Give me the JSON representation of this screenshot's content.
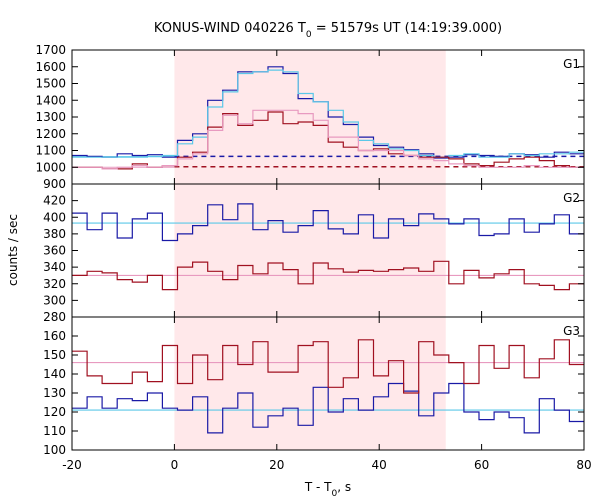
{
  "chart_data": {
    "type": "line",
    "title": "KONUS-WIND 040226 T",
    "title_sub": "0",
    "title_rest": " = 51579s UT (14:19:39.000)",
    "xlabel": "T - T",
    "xlabel_sub": "0",
    "xlabel_rest": ", s",
    "ylabel": "counts / sec",
    "xlim": [
      -20,
      80
    ],
    "x_ticks": [
      -20,
      0,
      20,
      40,
      60,
      80
    ],
    "highlight_interval": [
      0,
      53
    ],
    "highlight_color": "#ffe8ea",
    "bin_edges": [
      -20,
      -17.056,
      -14.112,
      -11.168,
      -8.224,
      -5.28,
      -2.336,
      0.608,
      3.552,
      6.496,
      9.44,
      12.384,
      15.328,
      18.272,
      21.216,
      24.16,
      27.104,
      30.048,
      32.992,
      35.936,
      38.88,
      41.824,
      44.768,
      47.712,
      50.656,
      53.6,
      56.544,
      59.488,
      62.432,
      65.376,
      68.32,
      71.264,
      74.208,
      77.152,
      80
    ],
    "panels": [
      {
        "label": "G1",
        "ylim": [
          900,
          1700
        ],
        "y_ticks": [
          900,
          1000,
          1100,
          1200,
          1300,
          1400,
          1500,
          1600,
          1700
        ],
        "series": [
          {
            "color": "#1a1aa6",
            "values": [
              1070,
              1065,
              1060,
              1080,
              1070,
              1075,
              1060,
              1160,
              1200,
              1400,
              1460,
              1570,
              1570,
              1600,
              1560,
              1410,
              1390,
              1300,
              1255,
              1180,
              1130,
              1120,
              1105,
              1080,
              1055,
              1060,
              1075,
              1070,
              1065,
              1080,
              1075,
              1060,
              1090,
              1080
            ]
          },
          {
            "color": "#5bc8e8",
            "values": [
              1060,
              1060,
              1060,
              1060,
              1060,
              1065,
              1070,
              1140,
              1180,
              1360,
              1450,
              1560,
              1570,
              1580,
              1570,
              1440,
              1390,
              1340,
              1270,
              1160,
              1140,
              1110,
              1100,
              1070,
              1060,
              1070,
              1080,
              1060,
              1060,
              1080,
              1070,
              1080,
              1080,
              1090
            ]
          },
          {
            "color": "#a01020",
            "values": [
              1000,
              1000,
              990,
              990,
              1020,
              1000,
              1010,
              1060,
              1090,
              1240,
              1320,
              1250,
              1280,
              1330,
              1260,
              1270,
              1250,
              1150,
              1120,
              1100,
              1110,
              1080,
              1070,
              1060,
              1060,
              1050,
              1020,
              1010,
              1030,
              1050,
              1060,
              1040,
              1010,
              1000
            ]
          },
          {
            "color": "#e89ac0",
            "values": [
              1000,
              1000,
              990,
              1000,
              1010,
              1000,
              1010,
              1050,
              1080,
              1220,
              1310,
              1260,
              1340,
              1340,
              1340,
              1320,
              1280,
              1180,
              1180,
              1100,
              1100,
              1100,
              1070,
              1050,
              1040,
              1020,
              1010,
              1000,
              1000,
              1000,
              1010,
              1000,
              1000,
              1000
            ]
          }
        ],
        "background_levels": [
          {
            "color": "#1a1aa6",
            "value": 1065,
            "dashed": true,
            "x_range": [
              0,
              80
            ]
          },
          {
            "color": "#5bc8e8",
            "value": 1063,
            "dashed": false,
            "x_range": [
              -20,
              0
            ]
          },
          {
            "color": "#a01020",
            "value": 1003,
            "dashed": true,
            "x_range": [
              0,
              80
            ]
          },
          {
            "color": "#e89ac0",
            "value": 1000,
            "dashed": false,
            "x_range": [
              -20,
              0
            ]
          }
        ]
      },
      {
        "label": "G2",
        "ylim": [
          280,
          440
        ],
        "y_ticks": [
          280,
          300,
          320,
          340,
          360,
          380,
          400,
          420
        ],
        "series": [
          {
            "color": "#1a1aa6",
            "values": [
              405,
              385,
              405,
              375,
              398,
              405,
              372,
              380,
              390,
              415,
              397,
              416,
              385,
              396,
              382,
              390,
              408,
              386,
              380,
              403,
              375,
              398,
              390,
              404,
              398,
              392,
              398,
              378,
              380,
              398,
              382,
              392,
              403,
              380
            ]
          },
          {
            "color": "#a01020",
            "values": [
              330,
              335,
              333,
              325,
              322,
              330,
              313,
              340,
              346,
              335,
              325,
              342,
              332,
              345,
              337,
              320,
              345,
              338,
              334,
              336,
              335,
              337,
              339,
              335,
              347,
              320,
              336,
              327,
              332,
              337,
              320,
              318,
              313,
              320
            ]
          }
        ],
        "background_levels": [
          {
            "color": "#5bc8e8",
            "value": 393,
            "dashed": false,
            "x_range": [
              -20,
              80
            ]
          },
          {
            "color": "#e89ac0",
            "value": 330,
            "dashed": false,
            "x_range": [
              -20,
              80
            ]
          }
        ]
      },
      {
        "label": "G3",
        "ylim": [
          100,
          170
        ],
        "y_ticks": [
          100,
          110,
          120,
          130,
          140,
          150,
          160
        ],
        "series": [
          {
            "color": "#1a1aa6",
            "values": [
              122,
              128,
              122,
              127,
              126,
              130,
              122,
              121,
              128,
              109,
              122,
              130,
              112,
              118,
              122,
              113,
              133,
              120,
              127,
              121,
              128,
              135,
              131,
              118,
              130,
              135,
              120,
              116,
              120,
              117,
              109,
              127,
              121,
              115
            ]
          },
          {
            "color": "#a01020",
            "values": [
              152,
              139,
              135,
              135,
              141,
              136,
              155,
              135,
              150,
              137,
              155,
              145,
              157,
              141,
              141,
              155,
              157,
              133,
              138,
              158,
              139,
              147,
              130,
              157,
              150,
              146,
              135,
              155,
              143,
              155,
              138,
              148,
              158,
              145
            ]
          }
        ],
        "background_levels": [
          {
            "color": "#5bc8e8",
            "value": 121,
            "dashed": false,
            "x_range": [
              -20,
              80
            ]
          },
          {
            "color": "#e89ac0",
            "value": 146,
            "dashed": false,
            "x_range": [
              -20,
              80
            ]
          }
        ]
      }
    ]
  }
}
